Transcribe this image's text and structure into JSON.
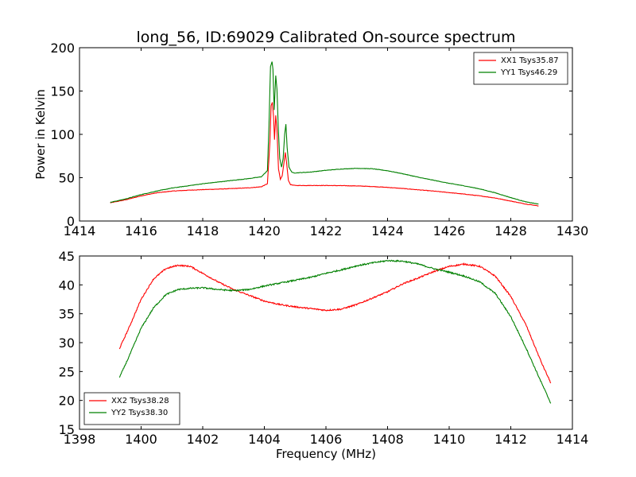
{
  "title": "long_56, ID:69029 Calibrated On-source spectrum",
  "chart_data": [
    {
      "type": "line",
      "title": "long_56, ID:69029 Calibrated On-source spectrum",
      "xlabel": "",
      "ylabel": "Power in Kelvin",
      "xlim": [
        1414,
        1430
      ],
      "ylim": [
        0,
        200
      ],
      "xticks": [
        "1414",
        "1416",
        "1418",
        "1420",
        "1422",
        "1424",
        "1426",
        "1428",
        "1430"
      ],
      "yticks": [
        "0",
        "50",
        "100",
        "150",
        "200"
      ],
      "legend_position": "top-right",
      "grid": false,
      "series": [
        {
          "name": "XX1 Tsys35.87",
          "color": "#ff0000",
          "points": [
            [
              1415.0,
              21
            ],
            [
              1415.5,
              24.5
            ],
            [
              1416.0,
              29
            ],
            [
              1416.5,
              32.5
            ],
            [
              1417.0,
              34.5
            ],
            [
              1417.5,
              35.5
            ],
            [
              1418.0,
              36.2
            ],
            [
              1418.5,
              36.8
            ],
            [
              1419.0,
              37.5
            ],
            [
              1419.5,
              38.3
            ],
            [
              1419.9,
              39.5
            ],
            [
              1420.1,
              43
            ],
            [
              1420.18,
              90
            ],
            [
              1420.22,
              133
            ],
            [
              1420.26,
              137
            ],
            [
              1420.3,
              120
            ],
            [
              1420.33,
              94
            ],
            [
              1420.37,
              122
            ],
            [
              1420.41,
              105
            ],
            [
              1420.46,
              60
            ],
            [
              1420.52,
              48
            ],
            [
              1420.58,
              52
            ],
            [
              1420.63,
              65
            ],
            [
              1420.68,
              79
            ],
            [
              1420.72,
              68
            ],
            [
              1420.78,
              47
            ],
            [
              1420.85,
              42
            ],
            [
              1421.0,
              41
            ],
            [
              1421.5,
              41
            ],
            [
              1422.0,
              41
            ],
            [
              1422.5,
              40.8
            ],
            [
              1423.0,
              40.5
            ],
            [
              1423.5,
              39.8
            ],
            [
              1424.0,
              38.8
            ],
            [
              1424.5,
              37.5
            ],
            [
              1425.0,
              36
            ],
            [
              1425.5,
              34.5
            ],
            [
              1426.0,
              32.8
            ],
            [
              1426.5,
              31
            ],
            [
              1427.0,
              29
            ],
            [
              1427.5,
              26.5
            ],
            [
              1428.0,
              23
            ],
            [
              1428.5,
              19.5
            ],
            [
              1428.9,
              17.5
            ]
          ]
        },
        {
          "name": "YY1 Tsys46.29",
          "color": "#008000",
          "points": [
            [
              1415.0,
              21.5
            ],
            [
              1415.5,
              25.5
            ],
            [
              1416.0,
              30.5
            ],
            [
              1416.5,
              34.5
            ],
            [
              1417.0,
              38
            ],
            [
              1417.5,
              40.5
            ],
            [
              1418.0,
              43
            ],
            [
              1418.5,
              45
            ],
            [
              1419.0,
              47
            ],
            [
              1419.5,
              49
            ],
            [
              1419.9,
              51
            ],
            [
              1420.1,
              58
            ],
            [
              1420.15,
              110
            ],
            [
              1420.2,
              178
            ],
            [
              1420.25,
              184
            ],
            [
              1420.28,
              175
            ],
            [
              1420.32,
              128
            ],
            [
              1420.37,
              168
            ],
            [
              1420.41,
              152
            ],
            [
              1420.45,
              110
            ],
            [
              1420.5,
              72
            ],
            [
              1420.56,
              62
            ],
            [
              1420.61,
              72
            ],
            [
              1420.66,
              100
            ],
            [
              1420.7,
              112
            ],
            [
              1420.74,
              85
            ],
            [
              1420.8,
              62
            ],
            [
              1420.9,
              56
            ],
            [
              1421.0,
              55.5
            ],
            [
              1421.5,
              56.5
            ],
            [
              1422.0,
              58.5
            ],
            [
              1422.5,
              60
            ],
            [
              1423.0,
              60.8
            ],
            [
              1423.5,
              60.3
            ],
            [
              1424.0,
              58
            ],
            [
              1424.5,
              54.5
            ],
            [
              1425.0,
              50.5
            ],
            [
              1425.5,
              47
            ],
            [
              1426.0,
              43.5
            ],
            [
              1426.5,
              40.5
            ],
            [
              1427.0,
              37
            ],
            [
              1427.5,
              32.5
            ],
            [
              1428.0,
              27
            ],
            [
              1428.5,
              22
            ],
            [
              1428.9,
              19.5
            ]
          ]
        }
      ]
    },
    {
      "type": "line",
      "title": "",
      "xlabel": "Frequency (MHz)",
      "ylabel": "",
      "xlim": [
        1398,
        1414
      ],
      "ylim": [
        15,
        45
      ],
      "xticks": [
        "1398",
        "1400",
        "1402",
        "1404",
        "1406",
        "1408",
        "1410",
        "1412",
        "1414"
      ],
      "yticks": [
        "15",
        "20",
        "25",
        "30",
        "35",
        "40",
        "45"
      ],
      "legend_position": "bottom-left",
      "grid": false,
      "series": [
        {
          "name": "XX2 Tsys38.28",
          "color": "#ff0000",
          "points": [
            [
              1399.3,
              29
            ],
            [
              1399.6,
              32.5
            ],
            [
              1400.0,
              37.5
            ],
            [
              1400.4,
              41
            ],
            [
              1400.8,
              42.8
            ],
            [
              1401.2,
              43.4
            ],
            [
              1401.6,
              43.2
            ],
            [
              1402.0,
              42
            ],
            [
              1402.5,
              40.5
            ],
            [
              1403.0,
              39.2
            ],
            [
              1403.5,
              38.2
            ],
            [
              1404.0,
              37.2
            ],
            [
              1404.5,
              36.6
            ],
            [
              1405.0,
              36.2
            ],
            [
              1405.5,
              35.9
            ],
            [
              1406.0,
              35.6
            ],
            [
              1406.5,
              35.8
            ],
            [
              1407.0,
              36.6
            ],
            [
              1407.5,
              37.7
            ],
            [
              1408.0,
              38.8
            ],
            [
              1408.5,
              40.2
            ],
            [
              1409.0,
              41.2
            ],
            [
              1409.5,
              42.3
            ],
            [
              1410.0,
              43.2
            ],
            [
              1410.5,
              43.6
            ],
            [
              1411.0,
              43.2
            ],
            [
              1411.5,
              41.5
            ],
            [
              1412.0,
              38
            ],
            [
              1412.5,
              33
            ],
            [
              1413.0,
              26.5
            ],
            [
              1413.3,
              23
            ]
          ]
        },
        {
          "name": "YY2 Tsys38.30",
          "color": "#008000",
          "points": [
            [
              1399.3,
              24
            ],
            [
              1399.6,
              27.5
            ],
            [
              1400.0,
              32.5
            ],
            [
              1400.4,
              36
            ],
            [
              1400.8,
              38.3
            ],
            [
              1401.2,
              39.2
            ],
            [
              1401.6,
              39.4
            ],
            [
              1402.0,
              39.5
            ],
            [
              1402.5,
              39.2
            ],
            [
              1403.0,
              39
            ],
            [
              1403.5,
              39.2
            ],
            [
              1404.0,
              39.8
            ],
            [
              1404.5,
              40.3
            ],
            [
              1405.0,
              40.8
            ],
            [
              1405.5,
              41.3
            ],
            [
              1406.0,
              42
            ],
            [
              1406.5,
              42.6
            ],
            [
              1407.0,
              43.3
            ],
            [
              1407.5,
              43.8
            ],
            [
              1408.0,
              44.2
            ],
            [
              1408.5,
              44.1
            ],
            [
              1409.0,
              43.6
            ],
            [
              1409.5,
              42.8
            ],
            [
              1410.0,
              42.2
            ],
            [
              1410.5,
              41.5
            ],
            [
              1411.0,
              40.5
            ],
            [
              1411.5,
              38.5
            ],
            [
              1412.0,
              34.5
            ],
            [
              1412.5,
              29
            ],
            [
              1413.0,
              23
            ],
            [
              1413.3,
              19.5
            ]
          ]
        }
      ]
    }
  ]
}
